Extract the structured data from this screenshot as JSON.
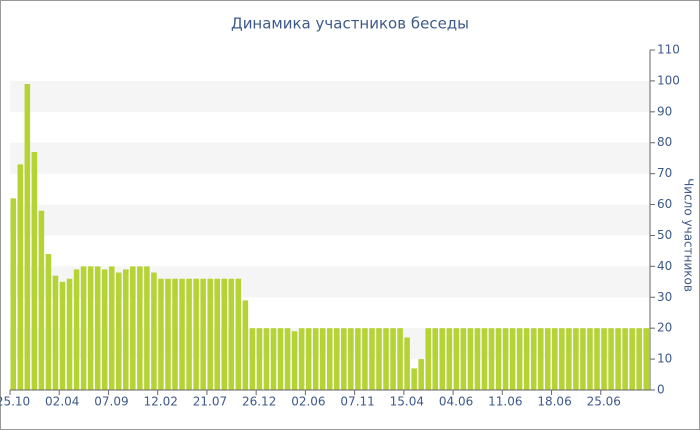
{
  "chart_data": {
    "type": "bar",
    "title": "Динамика участников беседы",
    "y_label": "Число участников",
    "categories": [
      "25.10",
      null,
      null,
      null,
      null,
      null,
      null,
      "02.04",
      null,
      null,
      null,
      null,
      null,
      null,
      "07.09",
      null,
      null,
      null,
      null,
      null,
      null,
      "12.02",
      null,
      null,
      null,
      null,
      null,
      null,
      "21.07",
      null,
      null,
      null,
      null,
      null,
      null,
      "26.12",
      null,
      null,
      null,
      null,
      null,
      null,
      "02.06",
      null,
      null,
      null,
      null,
      null,
      null,
      "07.11",
      null,
      null,
      null,
      null,
      null,
      null,
      "15.04",
      null,
      null,
      null,
      null,
      null,
      null,
      "04.06",
      null,
      null,
      null,
      null,
      null,
      null,
      "11.06",
      null,
      null,
      null,
      null,
      null,
      null,
      "18.06",
      null,
      null,
      null,
      null,
      null,
      null,
      "25.06",
      null,
      null,
      null,
      null,
      null,
      null
    ],
    "values": [
      62,
      73,
      99,
      77,
      58,
      44,
      37,
      35,
      36,
      39,
      40,
      40,
      40,
      39,
      40,
      38,
      39,
      40,
      40,
      40,
      38,
      36,
      36,
      36,
      36,
      36,
      36,
      36,
      36,
      36,
      36,
      36,
      36,
      29,
      20,
      20,
      20,
      20,
      20,
      20,
      19,
      20,
      20,
      20,
      20,
      20,
      20,
      20,
      20,
      20,
      20,
      20,
      20,
      20,
      20,
      20,
      17,
      7,
      10,
      20,
      20,
      20,
      20,
      20,
      20,
      20,
      20,
      20,
      20,
      20,
      20,
      20,
      20,
      20,
      20,
      20,
      20,
      20,
      20,
      20,
      20,
      20,
      20,
      20,
      20,
      20,
      20,
      20,
      20,
      20,
      20
    ],
    "color": "#b5d334",
    "ylim": [
      0,
      110
    ],
    "yticks": [
      0,
      10,
      20,
      30,
      40,
      50,
      60,
      70,
      80,
      90,
      100,
      110
    ],
    "grid": "bands",
    "y_axis_side": "right"
  }
}
